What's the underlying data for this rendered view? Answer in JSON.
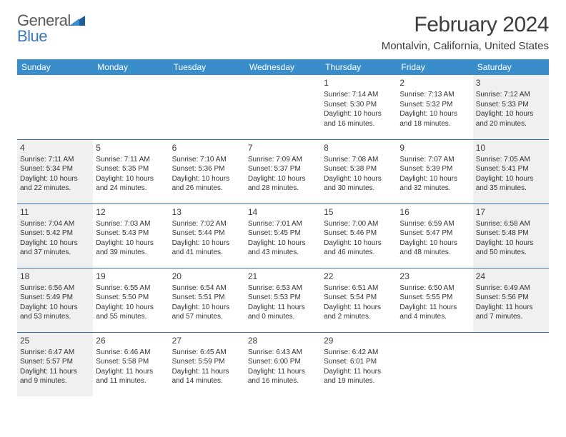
{
  "brand": {
    "top": "General",
    "bottom": "Blue"
  },
  "title": "February 2024",
  "location": "Montalvin, California, United States",
  "colors": {
    "header_bg": "#3a8dcb",
    "header_fg": "#ffffff",
    "rule": "#3a6ea5",
    "shade": "#f0f0f0",
    "logo_gray": "#58595b",
    "logo_blue": "#3a7ab8"
  },
  "weekdays": [
    "Sunday",
    "Monday",
    "Tuesday",
    "Wednesday",
    "Thursday",
    "Friday",
    "Saturday"
  ],
  "weeks": [
    [
      null,
      null,
      null,
      null,
      {
        "n": "1",
        "t": "Sunrise: 7:14 AM\nSunset: 5:30 PM\nDaylight: 10 hours and 16 minutes."
      },
      {
        "n": "2",
        "t": "Sunrise: 7:13 AM\nSunset: 5:32 PM\nDaylight: 10 hours and 18 minutes."
      },
      {
        "n": "3",
        "t": "Sunrise: 7:12 AM\nSunset: 5:33 PM\nDaylight: 10 hours and 20 minutes."
      }
    ],
    [
      {
        "n": "4",
        "t": "Sunrise: 7:11 AM\nSunset: 5:34 PM\nDaylight: 10 hours and 22 minutes."
      },
      {
        "n": "5",
        "t": "Sunrise: 7:11 AM\nSunset: 5:35 PM\nDaylight: 10 hours and 24 minutes."
      },
      {
        "n": "6",
        "t": "Sunrise: 7:10 AM\nSunset: 5:36 PM\nDaylight: 10 hours and 26 minutes."
      },
      {
        "n": "7",
        "t": "Sunrise: 7:09 AM\nSunset: 5:37 PM\nDaylight: 10 hours and 28 minutes."
      },
      {
        "n": "8",
        "t": "Sunrise: 7:08 AM\nSunset: 5:38 PM\nDaylight: 10 hours and 30 minutes."
      },
      {
        "n": "9",
        "t": "Sunrise: 7:07 AM\nSunset: 5:39 PM\nDaylight: 10 hours and 32 minutes."
      },
      {
        "n": "10",
        "t": "Sunrise: 7:05 AM\nSunset: 5:41 PM\nDaylight: 10 hours and 35 minutes."
      }
    ],
    [
      {
        "n": "11",
        "t": "Sunrise: 7:04 AM\nSunset: 5:42 PM\nDaylight: 10 hours and 37 minutes."
      },
      {
        "n": "12",
        "t": "Sunrise: 7:03 AM\nSunset: 5:43 PM\nDaylight: 10 hours and 39 minutes."
      },
      {
        "n": "13",
        "t": "Sunrise: 7:02 AM\nSunset: 5:44 PM\nDaylight: 10 hours and 41 minutes."
      },
      {
        "n": "14",
        "t": "Sunrise: 7:01 AM\nSunset: 5:45 PM\nDaylight: 10 hours and 43 minutes."
      },
      {
        "n": "15",
        "t": "Sunrise: 7:00 AM\nSunset: 5:46 PM\nDaylight: 10 hours and 46 minutes."
      },
      {
        "n": "16",
        "t": "Sunrise: 6:59 AM\nSunset: 5:47 PM\nDaylight: 10 hours and 48 minutes."
      },
      {
        "n": "17",
        "t": "Sunrise: 6:58 AM\nSunset: 5:48 PM\nDaylight: 10 hours and 50 minutes."
      }
    ],
    [
      {
        "n": "18",
        "t": "Sunrise: 6:56 AM\nSunset: 5:49 PM\nDaylight: 10 hours and 53 minutes."
      },
      {
        "n": "19",
        "t": "Sunrise: 6:55 AM\nSunset: 5:50 PM\nDaylight: 10 hours and 55 minutes."
      },
      {
        "n": "20",
        "t": "Sunrise: 6:54 AM\nSunset: 5:51 PM\nDaylight: 10 hours and 57 minutes."
      },
      {
        "n": "21",
        "t": "Sunrise: 6:53 AM\nSunset: 5:53 PM\nDaylight: 11 hours and 0 minutes."
      },
      {
        "n": "22",
        "t": "Sunrise: 6:51 AM\nSunset: 5:54 PM\nDaylight: 11 hours and 2 minutes."
      },
      {
        "n": "23",
        "t": "Sunrise: 6:50 AM\nSunset: 5:55 PM\nDaylight: 11 hours and 4 minutes."
      },
      {
        "n": "24",
        "t": "Sunrise: 6:49 AM\nSunset: 5:56 PM\nDaylight: 11 hours and 7 minutes."
      }
    ],
    [
      {
        "n": "25",
        "t": "Sunrise: 6:47 AM\nSunset: 5:57 PM\nDaylight: 11 hours and 9 minutes."
      },
      {
        "n": "26",
        "t": "Sunrise: 6:46 AM\nSunset: 5:58 PM\nDaylight: 11 hours and 11 minutes."
      },
      {
        "n": "27",
        "t": "Sunrise: 6:45 AM\nSunset: 5:59 PM\nDaylight: 11 hours and 14 minutes."
      },
      {
        "n": "28",
        "t": "Sunrise: 6:43 AM\nSunset: 6:00 PM\nDaylight: 11 hours and 16 minutes."
      },
      {
        "n": "29",
        "t": "Sunrise: 6:42 AM\nSunset: 6:01 PM\nDaylight: 11 hours and 19 minutes."
      },
      null,
      null
    ]
  ]
}
